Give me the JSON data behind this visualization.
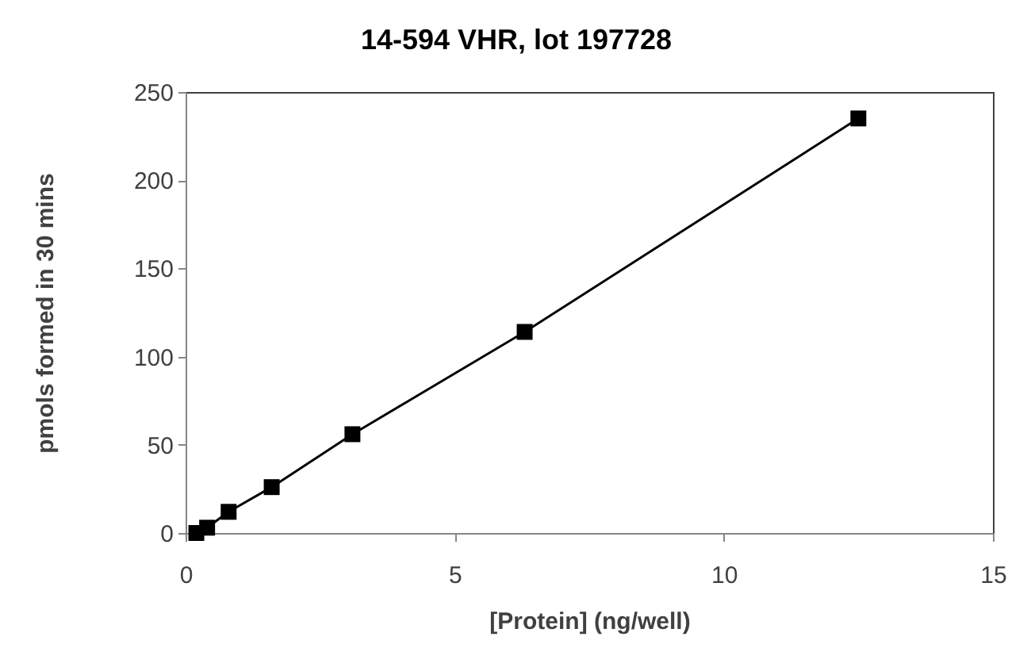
{
  "chart_data": {
    "type": "line",
    "title": "14-594 VHR, lot 197728",
    "xlabel": "[Protein] (ng/well)",
    "ylabel": "pmols formed in 30 mins",
    "x": [
      0.2,
      0.4,
      0.8,
      1.6,
      3.1,
      6.3,
      12.5
    ],
    "series": [
      {
        "color": "#000000",
        "values": [
          0,
          3,
          12,
          26,
          56,
          114,
          235
        ]
      }
    ],
    "xlim": [
      0,
      15
    ],
    "xticks": [
      0,
      5,
      10,
      15
    ],
    "ylim": [
      0,
      250
    ],
    "yticks": [
      0,
      50,
      100,
      150,
      200,
      250
    ],
    "marker": "square",
    "line_style": "solid"
  }
}
